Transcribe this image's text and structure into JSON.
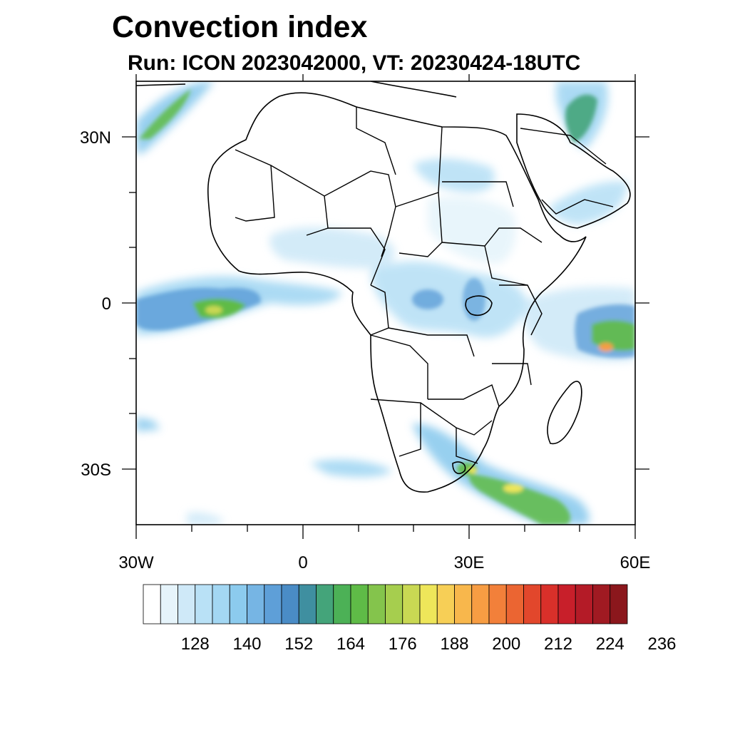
{
  "title": "Convection index",
  "subtitle": "Run: ICON 2023042000,  VT: 20230424-18UTC",
  "map": {
    "region": "Africa",
    "projection": "lat-lon",
    "lon_range": [
      -30,
      60
    ],
    "lat_range": [
      -40,
      40
    ],
    "x_ticks": [
      "30W",
      "0",
      "30E",
      "60E"
    ],
    "y_ticks": [
      "30N",
      "0",
      "30S"
    ]
  },
  "colorbar": {
    "labels": [
      "128",
      "140",
      "152",
      "164",
      "176",
      "188",
      "200",
      "212",
      "224",
      "236"
    ],
    "colors": [
      "#ffffff",
      "#e6f4fb",
      "#cfe9f8",
      "#b9e1f6",
      "#a3d7f3",
      "#8ccbee",
      "#76b5e4",
      "#5e9fd8",
      "#4a8cc6",
      "#3f8fa0",
      "#44a47a",
      "#4cb156",
      "#5fbb47",
      "#84c44c",
      "#a6ce4e",
      "#c9d853",
      "#eee65a",
      "#f7cf56",
      "#f8b74c",
      "#f79d43",
      "#f2803a",
      "#eb6532",
      "#e2472c",
      "#d9302a",
      "#c81f2a",
      "#b41b27",
      "#a01a22",
      "#8b171c"
    ]
  }
}
